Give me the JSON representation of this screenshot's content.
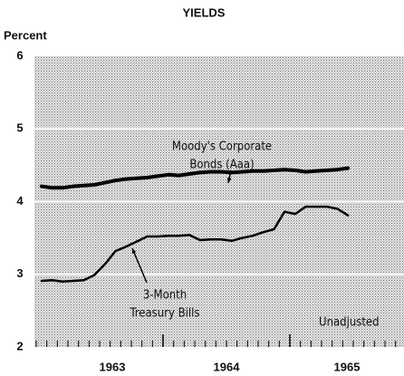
{
  "chart_data": {
    "type": "line",
    "title": "YIELDS",
    "y_label": "Percent",
    "x": [
      1963.042,
      1963.125,
      1963.208,
      1963.292,
      1963.375,
      1963.458,
      1963.542,
      1963.625,
      1963.708,
      1963.792,
      1963.875,
      1963.958,
      1964.042,
      1964.125,
      1964.208,
      1964.292,
      1964.375,
      1964.458,
      1964.542,
      1964.625,
      1964.708,
      1964.792,
      1964.875,
      1964.958,
      1965.042,
      1965.125,
      1965.208,
      1965.292,
      1965.375,
      1965.458
    ],
    "series": [
      {
        "name": "Moody's Corporate Bonds (Aaa)",
        "color": "#000000",
        "width": 4,
        "label_lines": [
          "Moody's Corporate",
          "Bonds (Aaa)"
        ],
        "values": [
          4.21,
          4.19,
          4.19,
          4.21,
          4.22,
          4.23,
          4.26,
          4.29,
          4.31,
          4.32,
          4.33,
          4.35,
          4.37,
          4.36,
          4.38,
          4.4,
          4.41,
          4.41,
          4.4,
          4.41,
          4.42,
          4.42,
          4.43,
          4.44,
          4.43,
          4.41,
          4.42,
          4.43,
          4.44,
          4.46
        ]
      },
      {
        "name": "3-Month Treasury Bills",
        "color": "#000000",
        "width": 2.5,
        "label_lines": [
          "3-Month",
          "Treasury Bills"
        ],
        "values": [
          2.91,
          2.92,
          2.9,
          2.91,
          2.92,
          2.99,
          3.14,
          3.32,
          3.38,
          3.45,
          3.52,
          3.52,
          3.53,
          3.53,
          3.54,
          3.47,
          3.48,
          3.48,
          3.46,
          3.5,
          3.53,
          3.58,
          3.62,
          3.86,
          3.83,
          3.93,
          3.93,
          3.93,
          3.9,
          3.81
        ]
      }
    ],
    "xlim": [
      1963,
      1965.9
    ],
    "year_labels": [
      {
        "value": 1963.6,
        "label": "1963"
      },
      {
        "value": 1964.5,
        "label": "1964"
      },
      {
        "value": 1965.45,
        "label": "1965"
      }
    ],
    "xticks": [
      1964,
      1965
    ],
    "ylim": [
      2,
      6
    ],
    "yticks": [
      2,
      3,
      4,
      5,
      6
    ],
    "grid": true,
    "note": "Unadjusted"
  }
}
